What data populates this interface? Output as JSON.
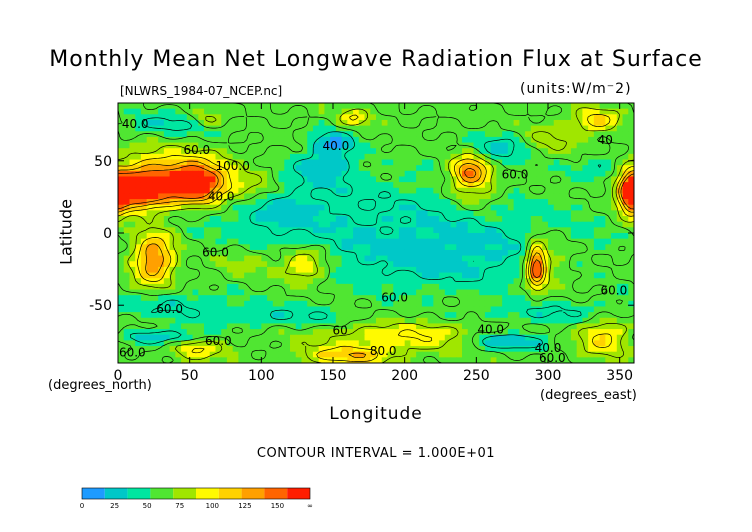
{
  "chart_data": {
    "type": "heatmap",
    "title": "Monthly Mean Net Longwave Radiation Flux at Surface",
    "subtitle": "[NLWRS_1984-07_NCEP.nc]",
    "units_label": "(units:W/m⁻2)",
    "xlabel": "Longitude",
    "ylabel": "Latitude",
    "x_unit_label": "(degrees_east)",
    "y_unit_label": "(degrees_north)",
    "xlim": [
      0,
      360
    ],
    "ylim": [
      -90,
      90
    ],
    "x_ticks": [
      {
        "value": 0,
        "label": "0"
      },
      {
        "value": 50,
        "label": "50"
      },
      {
        "value": 100,
        "label": "100"
      },
      {
        "value": 150,
        "label": "150"
      },
      {
        "value": 200,
        "label": "200"
      },
      {
        "value": 250,
        "label": "250"
      },
      {
        "value": 300,
        "label": "300"
      },
      {
        "value": 350,
        "label": "350"
      }
    ],
    "y_ticks": [
      {
        "value": 50,
        "label": "50"
      },
      {
        "value": 0,
        "label": "0"
      },
      {
        "value": -50,
        "label": "-50"
      }
    ],
    "annotation": "CONTOUR INTERVAL = 1.000E+01",
    "contour_labels": [
      {
        "lon": 12,
        "lat": 75,
        "text": "40.0"
      },
      {
        "lon": 55,
        "lat": 57,
        "text": "60.0"
      },
      {
        "lon": 80,
        "lat": 46,
        "text": "100.0"
      },
      {
        "lon": 72,
        "lat": 25,
        "text": "40.0"
      },
      {
        "lon": 152,
        "lat": 60,
        "text": "40.0"
      },
      {
        "lon": 277,
        "lat": 40,
        "text": "60.0"
      },
      {
        "lon": 340,
        "lat": 64,
        "text": "40"
      },
      {
        "lon": 68,
        "lat": -14,
        "text": "60.0"
      },
      {
        "lon": 193,
        "lat": -45,
        "text": "60.0"
      },
      {
        "lon": 36,
        "lat": -53,
        "text": "60.0"
      },
      {
        "lon": 346,
        "lat": -40,
        "text": "60.0"
      },
      {
        "lon": 70,
        "lat": -75,
        "text": "60.0"
      },
      {
        "lon": 155,
        "lat": -68,
        "text": "60"
      },
      {
        "lon": 185,
        "lat": -82,
        "text": "80.0"
      },
      {
        "lon": 260,
        "lat": -67,
        "text": "40.0"
      },
      {
        "lon": 300,
        "lat": -80,
        "text": "40.0"
      },
      {
        "lon": 303,
        "lat": -87,
        "text": "60.0"
      },
      {
        "lon": 10,
        "lat": -83,
        "text": "60.0"
      }
    ],
    "field": {
      "background_value": 62,
      "blobs": [
        {
          "lon": 15,
          "lat": 28,
          "rx": 20,
          "ry": 12,
          "value": 165
        },
        {
          "lon": 55,
          "lat": 33,
          "rx": 18,
          "ry": 12,
          "value": 160
        },
        {
          "lon": 35,
          "lat": 40,
          "rx": 40,
          "ry": 16,
          "value": 130
        },
        {
          "lon": 95,
          "lat": 30,
          "rx": 22,
          "ry": 12,
          "value": 95
        },
        {
          "lon": 358,
          "lat": 27,
          "rx": 8,
          "ry": 14,
          "value": 160
        },
        {
          "lon": 245,
          "lat": 43,
          "rx": 12,
          "ry": 10,
          "value": 140
        },
        {
          "lon": 250,
          "lat": 30,
          "rx": 20,
          "ry": 14,
          "value": 95
        },
        {
          "lon": 335,
          "lat": 78,
          "rx": 16,
          "ry": 8,
          "value": 110
        },
        {
          "lon": 165,
          "lat": 80,
          "rx": 10,
          "ry": 6,
          "value": 100
        },
        {
          "lon": 62,
          "lat": 78,
          "rx": 12,
          "ry": 6,
          "value": 95
        },
        {
          "lon": 300,
          "lat": 65,
          "rx": 25,
          "ry": 10,
          "value": 85
        },
        {
          "lon": 25,
          "lat": -18,
          "rx": 14,
          "ry": 18,
          "value": 140
        },
        {
          "lon": 90,
          "lat": -20,
          "rx": 20,
          "ry": 12,
          "value": 80
        },
        {
          "lon": 130,
          "lat": -22,
          "rx": 16,
          "ry": 12,
          "value": 110
        },
        {
          "lon": 292,
          "lat": -23,
          "rx": 6,
          "ry": 14,
          "value": 155
        },
        {
          "lon": 300,
          "lat": -20,
          "rx": 16,
          "ry": 18,
          "value": 90
        },
        {
          "lon": 200,
          "lat": -72,
          "rx": 60,
          "ry": 10,
          "value": 100
        },
        {
          "lon": 160,
          "lat": -85,
          "rx": 30,
          "ry": 6,
          "value": 115
        },
        {
          "lon": 340,
          "lat": -72,
          "rx": 18,
          "ry": 12,
          "value": 110
        },
        {
          "lon": 55,
          "lat": -80,
          "rx": 18,
          "ry": 8,
          "value": 100
        },
        {
          "lon": 200,
          "lat": 5,
          "rx": 120,
          "ry": 35,
          "value": 38
        },
        {
          "lon": 110,
          "lat": 20,
          "rx": 30,
          "ry": 20,
          "value": 35
        },
        {
          "lon": 230,
          "lat": -20,
          "rx": 70,
          "ry": 20,
          "value": 42
        },
        {
          "lon": 145,
          "lat": 45,
          "rx": 20,
          "ry": 12,
          "value": 30
        },
        {
          "lon": 150,
          "lat": 62,
          "rx": 14,
          "ry": 8,
          "value": 15
        },
        {
          "lon": 40,
          "lat": 75,
          "rx": 40,
          "ry": 8,
          "value": 35
        },
        {
          "lon": 270,
          "lat": 60,
          "rx": 20,
          "ry": 10,
          "value": 30
        },
        {
          "lon": 340,
          "lat": 45,
          "rx": 20,
          "ry": 10,
          "value": 35
        },
        {
          "lon": 40,
          "lat": -50,
          "rx": 40,
          "ry": 10,
          "value": 40
        },
        {
          "lon": 120,
          "lat": -58,
          "rx": 50,
          "ry": 8,
          "value": 40
        },
        {
          "lon": 300,
          "lat": -55,
          "rx": 50,
          "ry": 8,
          "value": 40
        },
        {
          "lon": 270,
          "lat": -75,
          "rx": 30,
          "ry": 6,
          "value": 15
        },
        {
          "lon": 30,
          "lat": -72,
          "rx": 30,
          "ry": 5,
          "value": 20
        }
      ]
    },
    "colorbar": {
      "colors": [
        "#1e9bff",
        "#00c8c8",
        "#00e6a0",
        "#50e632",
        "#a0e600",
        "#fffa00",
        "#ffd200",
        "#ffa000",
        "#ff6400",
        "#ff1e00"
      ],
      "labels": [
        {
          "pos": 0,
          "text": "0"
        },
        {
          "pos": 0.1667,
          "text": "25"
        },
        {
          "pos": 0.3333,
          "text": "50"
        },
        {
          "pos": 0.5,
          "text": "75"
        },
        {
          "pos": 0.6667,
          "text": "100"
        },
        {
          "pos": 0.8333,
          "text": "125"
        },
        {
          "pos": 1.0,
          "text": "150"
        },
        {
          "pos": 1.1667,
          "text": "∞"
        }
      ],
      "vmin": 0,
      "vmax": 175
    }
  }
}
